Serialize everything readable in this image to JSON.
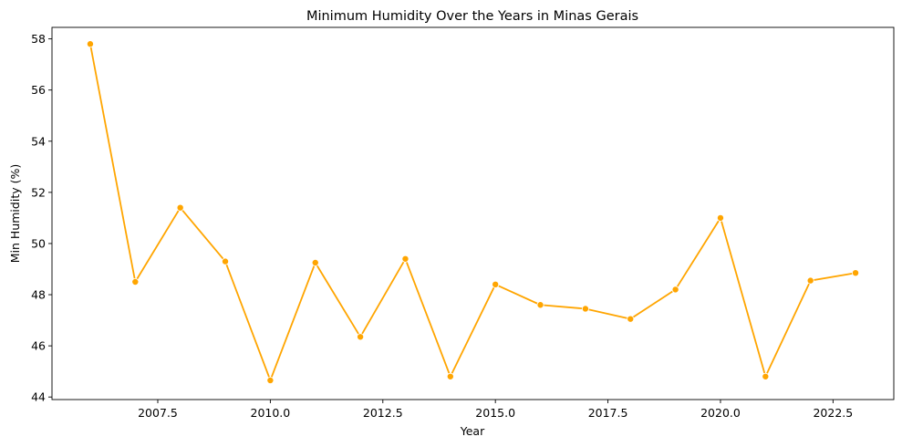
{
  "chart_data": {
    "type": "line",
    "title": "Minimum Humidity Over the Years in Minas Gerais",
    "xlabel": "Year",
    "ylabel": "Min Humidity (%)",
    "x": [
      2006,
      2007,
      2008,
      2009,
      2010,
      2011,
      2012,
      2013,
      2014,
      2015,
      2016,
      2017,
      2018,
      2019,
      2020,
      2021,
      2022,
      2023
    ],
    "series": [
      {
        "values": [
          57.8,
          48.5,
          51.4,
          49.3,
          44.65,
          49.25,
          46.35,
          49.4,
          44.8,
          48.4,
          47.6,
          47.45,
          47.05,
          48.2,
          51.0,
          44.8,
          48.55,
          48.85
        ],
        "color": "#FFA500",
        "marker": "circle"
      }
    ],
    "xlim": [
      2005.15,
      2023.85
    ],
    "ylim": [
      43.9,
      58.45
    ],
    "xticks": [
      2007.5,
      2010.0,
      2012.5,
      2015.0,
      2017.5,
      2020.0,
      2022.5
    ],
    "xtick_labels": [
      "2007.5",
      "2010.0",
      "2012.5",
      "2015.0",
      "2017.5",
      "2020.0",
      "2022.5"
    ],
    "yticks": [
      44,
      46,
      48,
      50,
      52,
      54,
      56,
      58
    ],
    "ytick_labels": [
      "44",
      "46",
      "48",
      "50",
      "52",
      "54",
      "56",
      "58"
    ],
    "grid": false,
    "legend": false
  }
}
